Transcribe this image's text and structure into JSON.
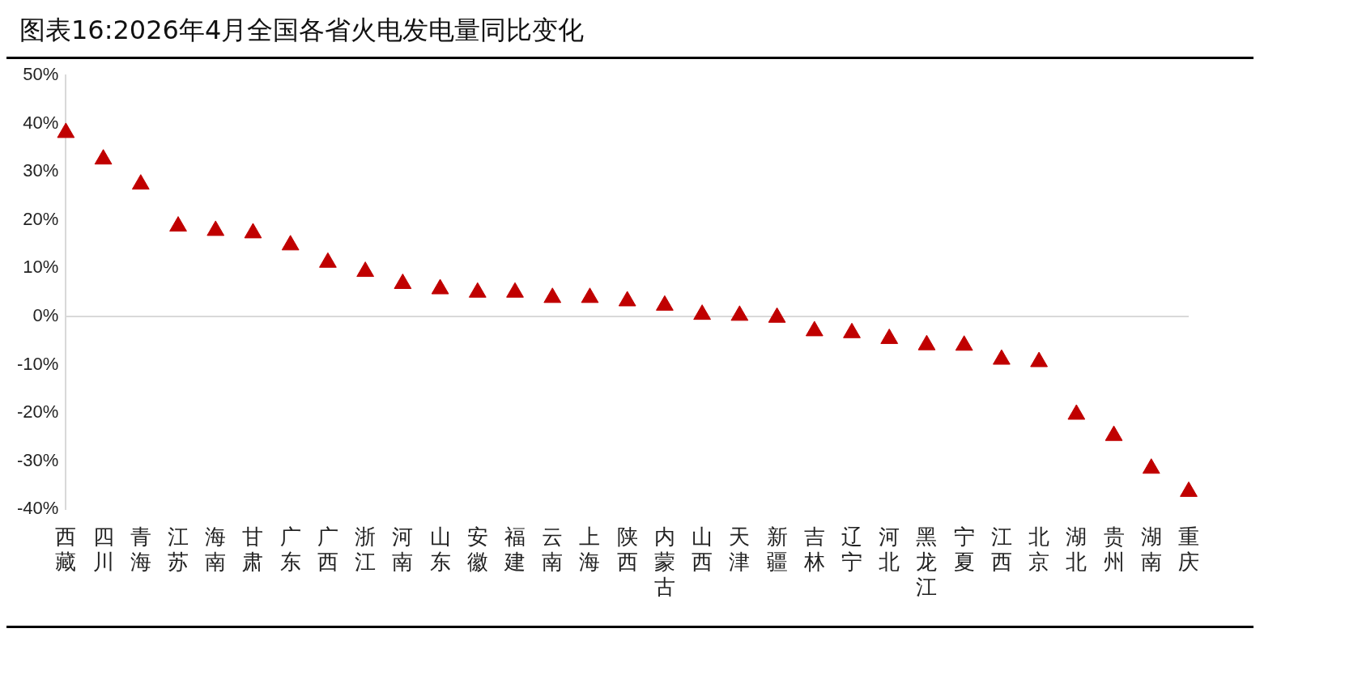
{
  "chart_data": {
    "type": "scatter",
    "title": "图表16:2026年4月全国各省火电发电量同比变化",
    "categories": [
      "西藏",
      "四川",
      "青海",
      "江苏",
      "海南",
      "甘肃",
      "广东",
      "广西",
      "浙江",
      "河南",
      "山东",
      "安徽",
      "福建",
      "云南",
      "上海",
      "陕西",
      "内蒙古",
      "山西",
      "天津",
      "新疆",
      "吉林",
      "辽宁",
      "河北",
      "黑龙江",
      "宁夏",
      "江西",
      "北京",
      "湖北",
      "贵州",
      "湖南",
      "重庆"
    ],
    "values": [
      38.1,
      32.6,
      27.4,
      18.7,
      17.8,
      17.3,
      14.8,
      11.2,
      9.3,
      6.8,
      5.7,
      5.0,
      5.0,
      3.9,
      3.9,
      3.2,
      2.3,
      0.4,
      0.2,
      -0.2,
      -3.0,
      -3.4,
      -4.6,
      -5.9,
      -6.0,
      -8.9,
      -9.4,
      -20.3,
      -24.7,
      -31.5,
      -36.3
    ],
    "color": "#c00000",
    "marker": "triangle",
    "ylim": [
      -40,
      50
    ],
    "yticks": [
      {
        "value": -40,
        "label": "-40%"
      },
      {
        "value": -30,
        "label": "-30%"
      },
      {
        "value": -20,
        "label": "-20%"
      },
      {
        "value": -10,
        "label": "-10%"
      },
      {
        "value": 0,
        "label": "0%"
      },
      {
        "value": 10,
        "label": "10%"
      },
      {
        "value": 20,
        "label": "20%"
      },
      {
        "value": 30,
        "label": "30%"
      },
      {
        "value": 40,
        "label": "40%"
      },
      {
        "value": 50,
        "label": "50%"
      }
    ],
    "ref_lines": [
      {
        "axis": "y",
        "value": 0,
        "color": "#d9d9d9"
      }
    ],
    "grid": false,
    "legend": false
  }
}
